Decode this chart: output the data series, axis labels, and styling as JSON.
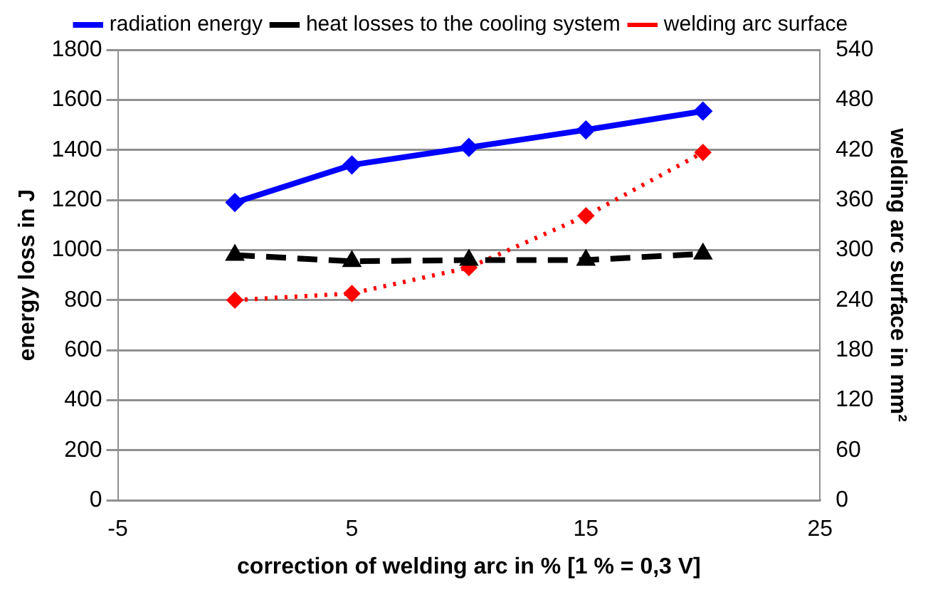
{
  "chart_data": {
    "type": "line",
    "xlabel": "correction of welding arc in % [1 % = 0,3 V]",
    "ylabel": "energy loss in J",
    "y2label": "welding arc surface in mm²",
    "x": [
      0,
      5,
      10,
      15,
      20
    ],
    "xlim": [
      -5,
      25
    ],
    "xticks": [
      -5,
      5,
      15,
      25
    ],
    "ylim": [
      0,
      1800
    ],
    "yticks": [
      0,
      200,
      400,
      600,
      800,
      1000,
      1200,
      1400,
      1600,
      1800
    ],
    "y2lim": [
      0,
      540
    ],
    "y2ticks": [
      0,
      60,
      120,
      180,
      240,
      300,
      360,
      420,
      480,
      540
    ],
    "grid": "y",
    "legend": "top",
    "series": [
      {
        "name": "radiation energy",
        "color": "#0000ff",
        "values": [
          1190,
          1340,
          1410,
          1480,
          1555
        ],
        "marker": "diamond",
        "line_style": "solid"
      },
      {
        "name": "heat losses to the cooling system",
        "color": "#000000",
        "values": [
          980,
          955,
          960,
          960,
          985
        ],
        "marker": "triangle",
        "line_style": "dashed"
      },
      {
        "name": "welding arc surface",
        "color": "#ff0000",
        "values": [
          240,
          248,
          279,
          341,
          417
        ],
        "marker": "diamond",
        "line_style": "dotted",
        "axis": "y2"
      }
    ]
  }
}
